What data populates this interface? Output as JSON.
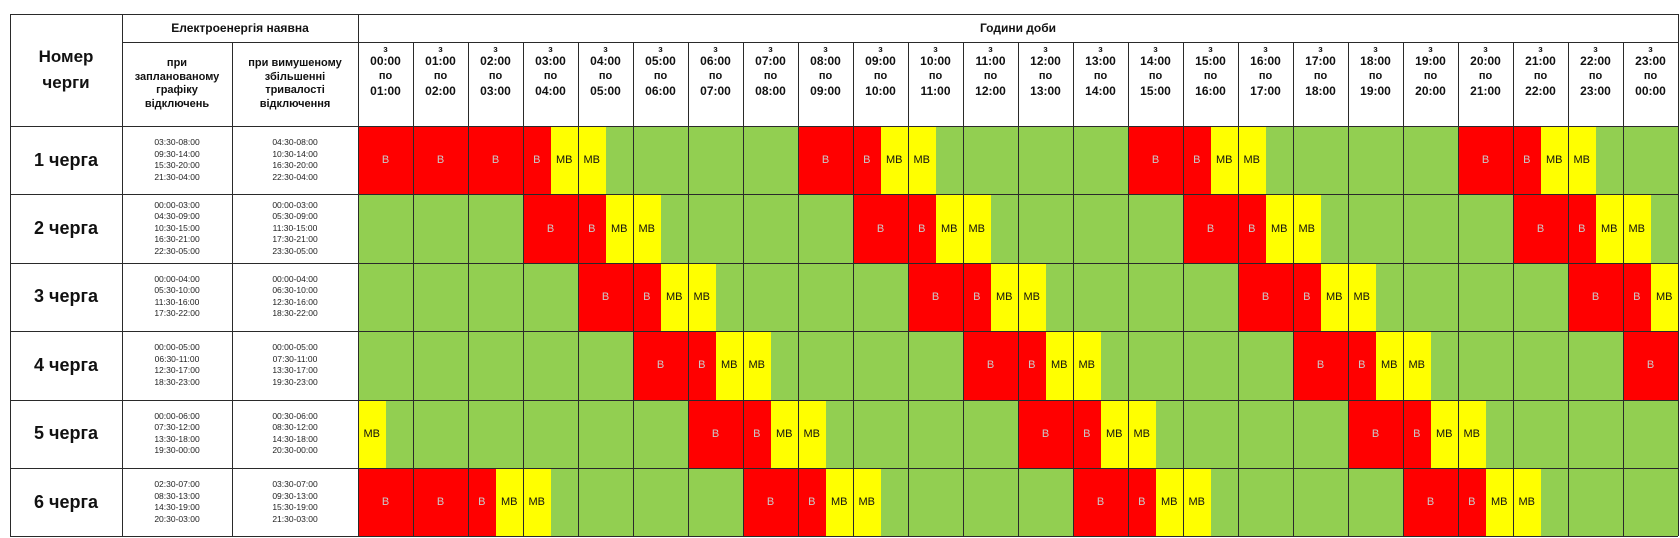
{
  "colors": {
    "on": "#92cf51",
    "off": "#ff0000",
    "maybe": "#ffff00"
  },
  "header": {
    "queue_col": "Номер черги",
    "power_group": "Електроенергія наявна",
    "planned": "при запланованому графіку відключень",
    "forced": "при вимушеному збільшенні тривалості відключення",
    "hours_title": "Години доби",
    "from_word": "з",
    "to_word": "по"
  },
  "hours": [
    {
      "from": "00:00",
      "to": "01:00"
    },
    {
      "from": "01:00",
      "to": "02:00"
    },
    {
      "from": "02:00",
      "to": "03:00"
    },
    {
      "from": "03:00",
      "to": "04:00"
    },
    {
      "from": "04:00",
      "to": "05:00"
    },
    {
      "from": "05:00",
      "to": "06:00"
    },
    {
      "from": "06:00",
      "to": "07:00"
    },
    {
      "from": "07:00",
      "to": "08:00"
    },
    {
      "from": "08:00",
      "to": "09:00"
    },
    {
      "from": "09:00",
      "to": "10:00"
    },
    {
      "from": "10:00",
      "to": "11:00"
    },
    {
      "from": "11:00",
      "to": "12:00"
    },
    {
      "from": "12:00",
      "to": "13:00"
    },
    {
      "from": "13:00",
      "to": "14:00"
    },
    {
      "from": "14:00",
      "to": "15:00"
    },
    {
      "from": "15:00",
      "to": "16:00"
    },
    {
      "from": "16:00",
      "to": "17:00"
    },
    {
      "from": "17:00",
      "to": "18:00"
    },
    {
      "from": "18:00",
      "to": "19:00"
    },
    {
      "from": "19:00",
      "to": "20:00"
    },
    {
      "from": "20:00",
      "to": "21:00"
    },
    {
      "from": "21:00",
      "to": "22:00"
    },
    {
      "from": "22:00",
      "to": "23:00"
    },
    {
      "from": "23:00",
      "to": "00:00"
    }
  ],
  "queues": [
    {
      "name": "1 черга",
      "planned": [
        "03:30-08:00",
        "09:30-14:00",
        "15:30-20:00",
        "21:30-04:00"
      ],
      "forced": [
        "04:30-08:00",
        "10:30-14:00",
        "16:30-20:00",
        "22:30-04:00"
      ],
      "segments": [
        {
          "start": 0,
          "end": 3.5,
          "type": "B",
          "labels": [
            {
              "at": 0.5,
              "text": "В"
            },
            {
              "at": 1.5,
              "text": "В"
            },
            {
              "at": 2.5,
              "text": "В"
            },
            {
              "at": 3.25,
              "text": "В"
            }
          ]
        },
        {
          "start": 3.5,
          "end": 4.5,
          "type": "MB",
          "labels": [
            {
              "at": 3.75,
              "text": "МВ"
            },
            {
              "at": 4.25,
              "text": "МВ"
            }
          ]
        },
        {
          "start": 8,
          "end": 9.5,
          "type": "B",
          "labels": [
            {
              "at": 8.5,
              "text": "В"
            },
            {
              "at": 9.25,
              "text": "В"
            }
          ]
        },
        {
          "start": 9.5,
          "end": 10.5,
          "type": "MB",
          "labels": [
            {
              "at": 9.75,
              "text": "МВ"
            },
            {
              "at": 10.25,
              "text": "МВ"
            }
          ]
        },
        {
          "start": 14,
          "end": 15.5,
          "type": "B",
          "labels": [
            {
              "at": 14.5,
              "text": "В"
            },
            {
              "at": 15.25,
              "text": "В"
            }
          ]
        },
        {
          "start": 15.5,
          "end": 16.5,
          "type": "MB",
          "labels": [
            {
              "at": 15.75,
              "text": "МВ"
            },
            {
              "at": 16.25,
              "text": "МВ"
            }
          ]
        },
        {
          "start": 20,
          "end": 21.5,
          "type": "B",
          "labels": [
            {
              "at": 20.5,
              "text": "В"
            },
            {
              "at": 21.25,
              "text": "В"
            }
          ]
        },
        {
          "start": 21.5,
          "end": 22.5,
          "type": "MB",
          "labels": [
            {
              "at": 21.75,
              "text": "МВ"
            },
            {
              "at": 22.25,
              "text": "МВ"
            }
          ]
        }
      ]
    },
    {
      "name": "2 черга",
      "planned": [
        "00:00-03:00",
        "04:30-09:00",
        "10:30-15:00",
        "16:30-21:00",
        "22:30-05:00"
      ],
      "forced": [
        "00:00-03:00",
        "05:30-09:00",
        "11:30-15:00",
        "17:30-21:00",
        "23:30-05:00"
      ],
      "segments": [
        {
          "start": 3,
          "end": 4.5,
          "type": "B",
          "labels": [
            {
              "at": 3.5,
              "text": "В"
            },
            {
              "at": 4.25,
              "text": "В"
            }
          ]
        },
        {
          "start": 4.5,
          "end": 5.5,
          "type": "MB",
          "labels": [
            {
              "at": 4.75,
              "text": "МВ"
            },
            {
              "at": 5.25,
              "text": "МВ"
            }
          ]
        },
        {
          "start": 9,
          "end": 10.5,
          "type": "B",
          "labels": [
            {
              "at": 9.5,
              "text": "В"
            },
            {
              "at": 10.25,
              "text": "В"
            }
          ]
        },
        {
          "start": 10.5,
          "end": 11.5,
          "type": "MB",
          "labels": [
            {
              "at": 10.75,
              "text": "МВ"
            },
            {
              "at": 11.25,
              "text": "МВ"
            }
          ]
        },
        {
          "start": 15,
          "end": 16.5,
          "type": "B",
          "labels": [
            {
              "at": 15.5,
              "text": "В"
            },
            {
              "at": 16.25,
              "text": "В"
            }
          ]
        },
        {
          "start": 16.5,
          "end": 17.5,
          "type": "MB",
          "labels": [
            {
              "at": 16.75,
              "text": "МВ"
            },
            {
              "at": 17.25,
              "text": "МВ"
            }
          ]
        },
        {
          "start": 21,
          "end": 22.5,
          "type": "B",
          "labels": [
            {
              "at": 21.5,
              "text": "В"
            },
            {
              "at": 22.25,
              "text": "В"
            }
          ]
        },
        {
          "start": 22.5,
          "end": 23.5,
          "type": "MB",
          "labels": [
            {
              "at": 22.75,
              "text": "МВ"
            },
            {
              "at": 23.25,
              "text": "МВ"
            }
          ]
        }
      ]
    },
    {
      "name": "3 черга",
      "planned": [
        "00:00-04:00",
        "05:30-10:00",
        "11:30-16:00",
        "17:30-22:00"
      ],
      "forced": [
        "00:00-04:00",
        "06:30-10:00",
        "12:30-16:00",
        "18:30-22:00"
      ],
      "segments": [
        {
          "start": 4,
          "end": 5.5,
          "type": "B",
          "labels": [
            {
              "at": 4.5,
              "text": "В"
            },
            {
              "at": 5.25,
              "text": "В"
            }
          ]
        },
        {
          "start": 5.5,
          "end": 6.5,
          "type": "MB",
          "labels": [
            {
              "at": 5.75,
              "text": "МВ"
            },
            {
              "at": 6.25,
              "text": "МВ"
            }
          ]
        },
        {
          "start": 10,
          "end": 11.5,
          "type": "B",
          "labels": [
            {
              "at": 10.5,
              "text": "В"
            },
            {
              "at": 11.25,
              "text": "В"
            }
          ]
        },
        {
          "start": 11.5,
          "end": 12.5,
          "type": "MB",
          "labels": [
            {
              "at": 11.75,
              "text": "МВ"
            },
            {
              "at": 12.25,
              "text": "МВ"
            }
          ]
        },
        {
          "start": 16,
          "end": 17.5,
          "type": "B",
          "labels": [
            {
              "at": 16.5,
              "text": "В"
            },
            {
              "at": 17.25,
              "text": "В"
            }
          ]
        },
        {
          "start": 17.5,
          "end": 18.5,
          "type": "MB",
          "labels": [
            {
              "at": 17.75,
              "text": "МВ"
            },
            {
              "at": 18.25,
              "text": "МВ"
            }
          ]
        },
        {
          "start": 22,
          "end": 23.5,
          "type": "B",
          "labels": [
            {
              "at": 22.5,
              "text": "В"
            },
            {
              "at": 23.25,
              "text": "В"
            }
          ]
        },
        {
          "start": 23.5,
          "end": 24,
          "type": "MB",
          "labels": [
            {
              "at": 23.75,
              "text": "МВ"
            }
          ]
        }
      ]
    },
    {
      "name": "4 черга",
      "planned": [
        "00:00-05:00",
        "06:30-11:00",
        "12:30-17:00",
        "18:30-23:00"
      ],
      "forced": [
        "00:00-05:00",
        "07:30-11:00",
        "13:30-17:00",
        "19:30-23:00"
      ],
      "segments": [
        {
          "start": 5,
          "end": 6.5,
          "type": "B",
          "labels": [
            {
              "at": 5.5,
              "text": "В"
            },
            {
              "at": 6.25,
              "text": "В"
            }
          ]
        },
        {
          "start": 6.5,
          "end": 7.5,
          "type": "MB",
          "labels": [
            {
              "at": 6.75,
              "text": "МВ"
            },
            {
              "at": 7.25,
              "text": "МВ"
            }
          ]
        },
        {
          "start": 11,
          "end": 12.5,
          "type": "B",
          "labels": [
            {
              "at": 11.5,
              "text": "В"
            },
            {
              "at": 12.25,
              "text": "В"
            }
          ]
        },
        {
          "start": 12.5,
          "end": 13.5,
          "type": "MB",
          "labels": [
            {
              "at": 12.75,
              "text": "МВ"
            },
            {
              "at": 13.25,
              "text": "МВ"
            }
          ]
        },
        {
          "start": 17,
          "end": 18.5,
          "type": "B",
          "labels": [
            {
              "at": 17.5,
              "text": "В"
            },
            {
              "at": 18.25,
              "text": "В"
            }
          ]
        },
        {
          "start": 18.5,
          "end": 19.5,
          "type": "MB",
          "labels": [
            {
              "at": 18.75,
              "text": "МВ"
            },
            {
              "at": 19.25,
              "text": "МВ"
            }
          ]
        },
        {
          "start": 23,
          "end": 24,
          "type": "B",
          "labels": [
            {
              "at": 23.5,
              "text": "В"
            }
          ]
        }
      ]
    },
    {
      "name": "5 черга",
      "planned": [
        "00:00-06:00",
        "07:30-12:00",
        "13:30-18:00",
        "19:30-00:00"
      ],
      "forced": [
        "00:30-06:00",
        "08:30-12:00",
        "14:30-18:00",
        "20:30-00:00"
      ],
      "segments": [
        {
          "start": 0,
          "end": 0.5,
          "type": "MB",
          "labels": [
            {
              "at": 0.25,
              "text": "МВ"
            }
          ]
        },
        {
          "start": 6,
          "end": 7.5,
          "type": "B",
          "labels": [
            {
              "at": 6.5,
              "text": "В"
            },
            {
              "at": 7.25,
              "text": "В"
            }
          ]
        },
        {
          "start": 7.5,
          "end": 8.5,
          "type": "MB",
          "labels": [
            {
              "at": 7.75,
              "text": "МВ"
            },
            {
              "at": 8.25,
              "text": "МВ"
            }
          ]
        },
        {
          "start": 12,
          "end": 13.5,
          "type": "B",
          "labels": [
            {
              "at": 12.5,
              "text": "В"
            },
            {
              "at": 13.25,
              "text": "В"
            }
          ]
        },
        {
          "start": 13.5,
          "end": 14.5,
          "type": "MB",
          "labels": [
            {
              "at": 13.75,
              "text": "МВ"
            },
            {
              "at": 14.25,
              "text": "МВ"
            }
          ]
        },
        {
          "start": 18,
          "end": 19.5,
          "type": "B",
          "labels": [
            {
              "at": 18.5,
              "text": "В"
            },
            {
              "at": 19.25,
              "text": "В"
            }
          ]
        },
        {
          "start": 19.5,
          "end": 20.5,
          "type": "MB",
          "labels": [
            {
              "at": 19.75,
              "text": "МВ"
            },
            {
              "at": 20.25,
              "text": "МВ"
            }
          ]
        }
      ]
    },
    {
      "name": "6 черга",
      "planned": [
        "02:30-07:00",
        "08:30-13:00",
        "14:30-19:00",
        "20:30-03:00"
      ],
      "forced": [
        "03:30-07:00",
        "09:30-13:00",
        "15:30-19:00",
        "21:30-03:00"
      ],
      "segments": [
        {
          "start": 0,
          "end": 2.5,
          "type": "B",
          "labels": [
            {
              "at": 0.5,
              "text": "В"
            },
            {
              "at": 1.5,
              "text": "В"
            },
            {
              "at": 2.25,
              "text": "В"
            }
          ]
        },
        {
          "start": 2.5,
          "end": 3.5,
          "type": "MB",
          "labels": [
            {
              "at": 2.75,
              "text": "МВ"
            },
            {
              "at": 3.25,
              "text": "МВ"
            }
          ]
        },
        {
          "start": 7,
          "end": 8.5,
          "type": "B",
          "labels": [
            {
              "at": 7.5,
              "text": "В"
            },
            {
              "at": 8.25,
              "text": "В"
            }
          ]
        },
        {
          "start": 8.5,
          "end": 9.5,
          "type": "MB",
          "labels": [
            {
              "at": 8.75,
              "text": "МВ"
            },
            {
              "at": 9.25,
              "text": "МВ"
            }
          ]
        },
        {
          "start": 13,
          "end": 14.5,
          "type": "B",
          "labels": [
            {
              "at": 13.5,
              "text": "В"
            },
            {
              "at": 14.25,
              "text": "В"
            }
          ]
        },
        {
          "start": 14.5,
          "end": 15.5,
          "type": "MB",
          "labels": [
            {
              "at": 14.75,
              "text": "МВ"
            },
            {
              "at": 15.25,
              "text": "МВ"
            }
          ]
        },
        {
          "start": 19,
          "end": 20.5,
          "type": "B",
          "labels": [
            {
              "at": 19.5,
              "text": "В"
            },
            {
              "at": 20.25,
              "text": "В"
            }
          ]
        },
        {
          "start": 20.5,
          "end": 21.5,
          "type": "MB",
          "labels": [
            {
              "at": 20.75,
              "text": "МВ"
            },
            {
              "at": 21.25,
              "text": "МВ"
            }
          ]
        }
      ]
    }
  ]
}
